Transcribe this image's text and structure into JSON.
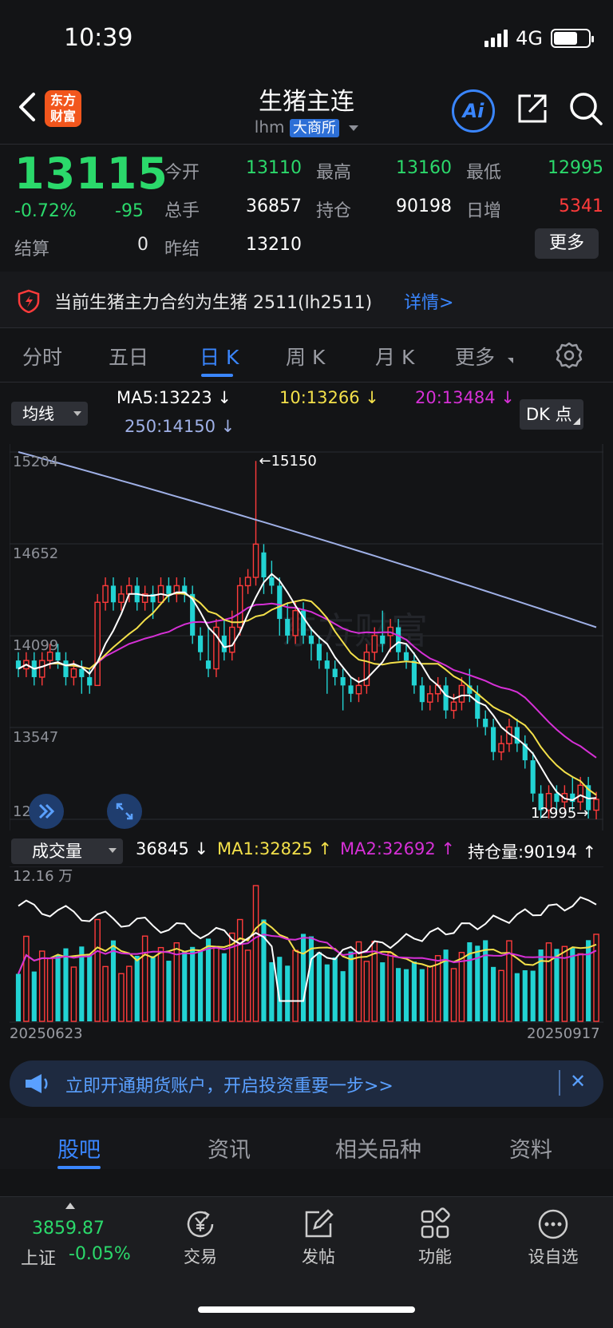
{
  "status": {
    "time": "10:39",
    "network": "4G"
  },
  "header": {
    "title": "生猪主连",
    "code": "lhm",
    "exchange": "大商所",
    "logo_line1": "东方",
    "logo_line2": "财富",
    "ai_label": "Ai"
  },
  "quote": {
    "last": "13115",
    "change_pct": "-0.72%",
    "change": "-95",
    "settle_label": "结算",
    "settle": "0",
    "open_label": "今开",
    "open": "13110",
    "high_label": "最高",
    "high": "13160",
    "low_label": "最低",
    "low": "12995",
    "volume_label": "总手",
    "volume": "36857",
    "oi_label": "持仓",
    "oi": "90198",
    "oi_chg_label": "日增",
    "oi_chg": "5341",
    "prev_settle_label": "昨结",
    "prev_settle": "13210",
    "more_label": "更多"
  },
  "notice": {
    "text": "当前生猪主力合约为生猪 2511(lh2511)",
    "link": "详情>"
  },
  "period_tabs": [
    "分时",
    "五日",
    "日 K",
    "周 K",
    "月 K",
    "更多"
  ],
  "active_period": 2,
  "ma_row": {
    "select": "均线",
    "ma5": "MA5:13223 ↓",
    "ma10": "10:13266 ↓",
    "ma20": "20:13484 ↓",
    "ma250": "250:14150 ↓",
    "dk_label": "DK 点"
  },
  "chart_axis": {
    "levels": [
      "15204",
      "14652",
      "14099",
      "13547",
      "12995"
    ],
    "max_mark": "←15150",
    "min_mark": "12995→"
  },
  "volume_row": {
    "select": "成交量",
    "value": "36845 ↓",
    "ma1": "MA1:32825 ↑",
    "ma2": "MA2:32692 ↑",
    "oi": "持仓量:90194 ↑",
    "scale_top": "12.16 万",
    "date_start": "20250623",
    "date_end": "20250917"
  },
  "colors": {
    "up": "#ff3b3b",
    "down": "#22d3d3",
    "ma5": "#ffffff",
    "ma10": "#f3e04a",
    "ma20": "#d630d6",
    "ma250": "#9fb0e6",
    "accent": "#3a86ff"
  },
  "promo": {
    "text": "立即开通期货账户，开启投资重要一步>>",
    "close": "✕"
  },
  "sub_tabs": [
    "股吧",
    "资讯",
    "相关品种",
    "资料"
  ],
  "bottom": {
    "index_value": "3859.87",
    "index_name": "上证",
    "index_change": "-0.05%",
    "nav": [
      "交易",
      "发帖",
      "功能",
      "设自选"
    ]
  },
  "chart_data": {
    "type": "candlestick",
    "x_range": [
      "20250623",
      "20250917"
    ],
    "ylim": [
      12995,
      15204
    ],
    "y_ticks": [
      15204,
      14652,
      14099,
      13547,
      12995
    ],
    "max_high": 15150,
    "min_low": 12995,
    "ohlc": [
      [
        13950,
        13900,
        14000,
        13850
      ],
      [
        13900,
        13950,
        14000,
        13850
      ],
      [
        13950,
        13850,
        14000,
        13800
      ],
      [
        13850,
        13950,
        14000,
        13800
      ],
      [
        13950,
        14000,
        14050,
        13900
      ],
      [
        14000,
        13950,
        14050,
        13900
      ],
      [
        13950,
        13850,
        14000,
        13800
      ],
      [
        13850,
        13900,
        13950,
        13800
      ],
      [
        13900,
        13850,
        13950,
        13750
      ],
      [
        13850,
        13800,
        13900,
        13750
      ],
      [
        13800,
        14300,
        14350,
        13800
      ],
      [
        14300,
        14400,
        14450,
        14250
      ],
      [
        14400,
        14300,
        14450,
        14250
      ],
      [
        14300,
        14350,
        14400,
        14250
      ],
      [
        14350,
        14400,
        14450,
        14300
      ],
      [
        14400,
        14300,
        14450,
        14250
      ],
      [
        14300,
        14350,
        14400,
        14250
      ],
      [
        14350,
        14300,
        14400,
        14200
      ],
      [
        14300,
        14400,
        14450,
        14300
      ],
      [
        14400,
        14350,
        14450,
        14300
      ],
      [
        14350,
        14400,
        14450,
        14300
      ],
      [
        14400,
        14350,
        14450,
        14300
      ],
      [
        14350,
        14100,
        14400,
        14050
      ],
      [
        14100,
        14000,
        14150,
        13950
      ],
      [
        13950,
        13900,
        14150,
        13850
      ],
      [
        13900,
        14150,
        14200,
        13850
      ],
      [
        14100,
        14000,
        14200,
        13950
      ],
      [
        14000,
        14150,
        14250,
        13950
      ],
      [
        14150,
        14400,
        14450,
        14100
      ],
      [
        14400,
        14450,
        14500,
        14350
      ],
      [
        14450,
        14650,
        15150,
        14400
      ],
      [
        14600,
        14450,
        14650,
        14350
      ],
      [
        14450,
        14400,
        14550,
        14350
      ],
      [
        14400,
        14200,
        14450,
        14100
      ],
      [
        14200,
        14100,
        14300,
        14050
      ],
      [
        14100,
        14250,
        14300,
        14050
      ],
      [
        14250,
        14100,
        14300,
        14050
      ],
      [
        14100,
        14050,
        14150,
        13950
      ],
      [
        14050,
        13950,
        14100,
        13900
      ],
      [
        13950,
        13900,
        14000,
        13750
      ],
      [
        13900,
        13850,
        13950,
        13800
      ],
      [
        13850,
        13800,
        13900,
        13650
      ],
      [
        13800,
        13750,
        13850,
        13700
      ],
      [
        13750,
        13800,
        13850,
        13700
      ],
      [
        13800,
        14000,
        14050,
        13750
      ],
      [
        14000,
        14100,
        14150,
        13950
      ],
      [
        14100,
        14050,
        14250,
        14000
      ],
      [
        14100,
        14150,
        14200,
        14000
      ],
      [
        14150,
        14000,
        14200,
        13950
      ],
      [
        14000,
        13950,
        14050,
        13900
      ],
      [
        13950,
        13800,
        14000,
        13750
      ],
      [
        13800,
        13700,
        13850,
        13650
      ],
      [
        13700,
        13750,
        13800,
        13650
      ],
      [
        13750,
        13800,
        13850,
        13700
      ],
      [
        13800,
        13650,
        13850,
        13600
      ],
      [
        13650,
        13700,
        13750,
        13600
      ],
      [
        13700,
        13800,
        13850,
        13650
      ],
      [
        13800,
        13750,
        13900,
        13700
      ],
      [
        13750,
        13600,
        13800,
        13550
      ],
      [
        13600,
        13550,
        13650,
        13500
      ],
      [
        13550,
        13400,
        13600,
        13350
      ],
      [
        13400,
        13450,
        13500,
        13350
      ],
      [
        13450,
        13550,
        13600,
        13400
      ],
      [
        13550,
        13450,
        13600,
        13400
      ],
      [
        13450,
        13350,
        13500,
        13300
      ],
      [
        13350,
        13150,
        13400,
        13100
      ],
      [
        13150,
        13050,
        13200,
        13000
      ],
      [
        13050,
        13150,
        13200,
        13000
      ],
      [
        13150,
        13100,
        13200,
        13050
      ],
      [
        13100,
        13150,
        13200,
        13050
      ],
      [
        13150,
        13100,
        13250,
        13050
      ],
      [
        13100,
        13200,
        13250,
        13050
      ],
      [
        13200,
        13050,
        13250,
        13000
      ],
      [
        13050,
        13115,
        13160,
        12995
      ]
    ],
    "ma250": [
      15204,
      14150
    ]
  }
}
